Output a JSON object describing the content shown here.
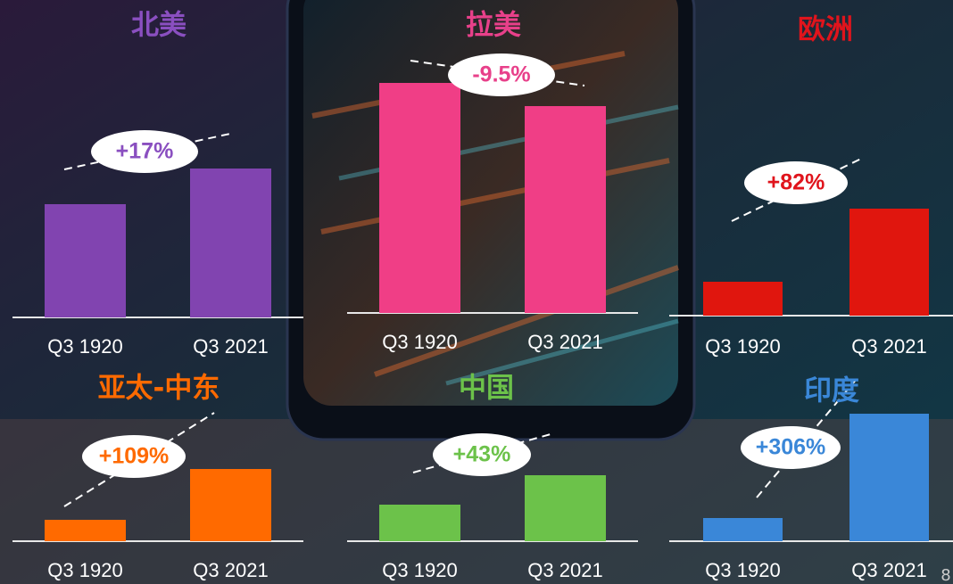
{
  "chart_data": [
    {
      "type": "bar",
      "title": "北美",
      "categories": [
        "Q3 1920",
        "Q3 2021"
      ],
      "values": [
        127,
        167
      ],
      "color": "#8144b0",
      "title_color": "#8a4fc0",
      "ylim": [
        0,
        300
      ],
      "annotation": "+17%"
    },
    {
      "type": "bar",
      "title": "拉美",
      "categories": [
        "Q3 1920",
        "Q3 2021"
      ],
      "values": [
        258,
        232
      ],
      "color": "#f03e86",
      "title_color": "#e8408a",
      "ylim": [
        0,
        300
      ],
      "annotation": "-9.5%"
    },
    {
      "type": "bar",
      "title": "欧洲",
      "categories": [
        "Q3 1920",
        "Q3 2021"
      ],
      "values": [
        38,
        120
      ],
      "color": "#e0160e",
      "title_color": "#e0141c",
      "ylim": [
        0,
        300
      ],
      "annotation": "+82%"
    },
    {
      "type": "bar",
      "title": "亚太-中东",
      "categories": [
        "Q3 1920",
        "Q3 2021"
      ],
      "values": [
        24,
        81
      ],
      "color": "#ff6a00",
      "title_color": "#ff6a00",
      "ylim": [
        0,
        300
      ],
      "annotation": "+109%"
    },
    {
      "type": "bar",
      "title": "中国",
      "categories": [
        "Q3 1920",
        "Q3 2021"
      ],
      "values": [
        41,
        74
      ],
      "color": "#6cc24a",
      "title_color": "#6cc24a",
      "ylim": [
        0,
        300
      ],
      "annotation": "+43%"
    },
    {
      "type": "bar",
      "title": "印度",
      "categories": [
        "Q3 1920",
        "Q3 2021"
      ],
      "values": [
        26,
        143
      ],
      "color": "#3a87d8",
      "title_color": "#3a87d8",
      "ylim": [
        0,
        300
      ],
      "annotation": "+306%"
    }
  ],
  "page_number": "8"
}
